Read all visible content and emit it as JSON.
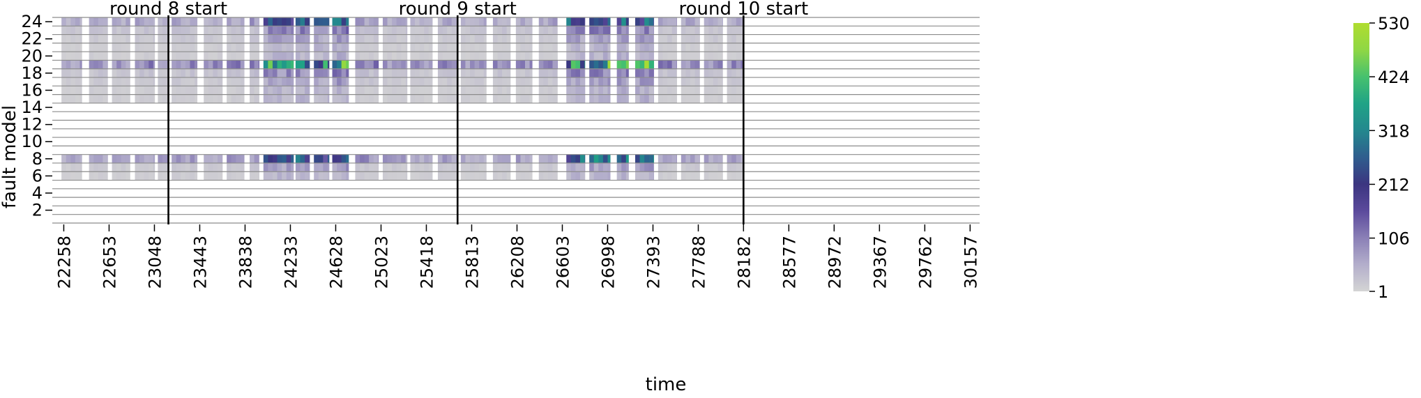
{
  "chart_data": {
    "type": "heatmap",
    "title": "",
    "xlabel": "time",
    "ylabel": "fault model",
    "x_ticks": [
      22258,
      22653,
      23048,
      23443,
      23838,
      24233,
      24628,
      25023,
      25418,
      25813,
      26208,
      26603,
      26998,
      27393,
      27788,
      28182,
      28577,
      28972,
      29367,
      29762,
      30157
    ],
    "x_tick_labels": [
      "22258",
      "22653",
      "23048",
      "23443",
      "23838",
      "24233",
      "24628",
      "25023",
      "25418",
      "25813",
      "26208",
      "26603",
      "26998",
      "27393",
      "27788",
      "28182",
      "28577",
      "28972",
      "29367",
      "29762",
      "30157"
    ],
    "xlim": [
      22158,
      30240
    ],
    "y_ticks": [
      2,
      4,
      6,
      8,
      10,
      12,
      14,
      16,
      18,
      20,
      22,
      24
    ],
    "y_tick_labels": [
      "2",
      "4",
      "6",
      "8",
      "10",
      "12",
      "14",
      "16",
      "18",
      "20",
      "22",
      "24"
    ],
    "ylim": [
      0.5,
      24.5
    ],
    "round_markers": [
      {
        "x": 23170,
        "label": "round 8 start"
      },
      {
        "x": 25690,
        "label": "round 9 start"
      },
      {
        "x": 28182,
        "label": "round 10 start"
      }
    ],
    "colorbar": {
      "min": 1,
      "max": 530,
      "ticks": [
        1,
        106,
        212,
        318,
        424,
        530
      ],
      "tick_labels": [
        "1",
        "106",
        "212",
        "318",
        "424",
        "530"
      ],
      "colors": [
        "#d4d4d4",
        "#b3aecb",
        "#8a7fb6",
        "#5b4a9c",
        "#3b3580",
        "#2f5e8e",
        "#23888e",
        "#20a386",
        "#47c16e",
        "#8fd744",
        "#b0dd2f"
      ]
    },
    "data": {
      "x_start": 22158,
      "x_end": 28182,
      "bin_width": 40,
      "active_rows": [
        6,
        7,
        8,
        15,
        16,
        17,
        18,
        19,
        20,
        21,
        22,
        23,
        24
      ],
      "empty_rows": [
        1,
        2,
        3,
        4,
        5,
        9,
        10,
        11,
        12,
        13,
        14
      ],
      "high_rows": [
        8,
        19,
        24
      ],
      "burst_periods": [
        {
          "start": 22200,
          "end": 22415,
          "level": 45
        },
        {
          "start": 22450,
          "end": 22640,
          "level": 55
        },
        {
          "start": 22660,
          "end": 22835,
          "level": 50
        },
        {
          "start": 22860,
          "end": 23050,
          "level": 60
        },
        {
          "start": 23060,
          "end": 23170,
          "level": 55
        },
        {
          "start": 23180,
          "end": 23420,
          "level": 60
        },
        {
          "start": 23440,
          "end": 23640,
          "level": 55
        },
        {
          "start": 23660,
          "end": 23830,
          "level": 60
        },
        {
          "start": 23850,
          "end": 23960,
          "level": 70
        },
        {
          "start": 23990,
          "end": 24260,
          "level": 210
        },
        {
          "start": 24270,
          "end": 24400,
          "level": 230
        },
        {
          "start": 24420,
          "end": 24570,
          "level": 200
        },
        {
          "start": 24580,
          "end": 24740,
          "level": 250
        },
        {
          "start": 24770,
          "end": 25000,
          "level": 70
        },
        {
          "start": 25020,
          "end": 25250,
          "level": 55
        },
        {
          "start": 25270,
          "end": 25470,
          "level": 50
        },
        {
          "start": 25490,
          "end": 25690,
          "level": 55
        },
        {
          "start": 25700,
          "end": 25940,
          "level": 50
        },
        {
          "start": 25960,
          "end": 26150,
          "level": 55
        },
        {
          "start": 26180,
          "end": 26340,
          "level": 55
        },
        {
          "start": 26370,
          "end": 26560,
          "level": 60
        },
        {
          "start": 26600,
          "end": 26800,
          "level": 220
        },
        {
          "start": 26820,
          "end": 27020,
          "level": 230
        },
        {
          "start": 27040,
          "end": 27180,
          "level": 240
        },
        {
          "start": 27230,
          "end": 27400,
          "level": 240
        },
        {
          "start": 27420,
          "end": 27600,
          "level": 60
        },
        {
          "start": 27620,
          "end": 27800,
          "level": 55
        },
        {
          "start": 27820,
          "end": 28000,
          "level": 55
        },
        {
          "start": 28020,
          "end": 28182,
          "level": 60
        }
      ]
    }
  }
}
